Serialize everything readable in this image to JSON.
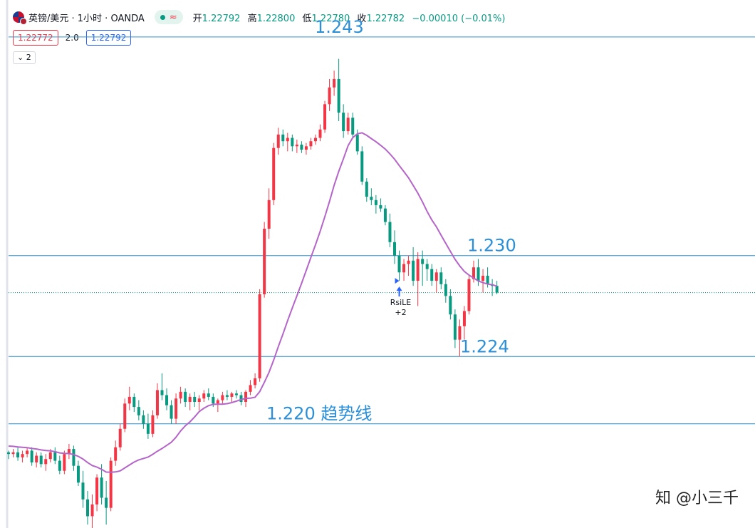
{
  "header": {
    "symbol": "英镑/美元 · 1小时 · OANDA",
    "market_status_icon": "market-open-dot",
    "wave_icon": "≈",
    "ohlc": {
      "open_label": "开",
      "open": "1.22792",
      "high_label": "高",
      "high": "1.22800",
      "low_label": "低",
      "low": "1.22780",
      "close_label": "收",
      "close": "1.22782",
      "change": "−0.00010 (−0.01%)"
    },
    "bid": "1.22772",
    "spread": "2.0",
    "ask": "1.22792",
    "indicators_toggle": "2",
    "indicators_icon": "chevron-down-icon"
  },
  "colors": {
    "up": "#f23645",
    "down": "#089981",
    "ma": "#b565c9",
    "level_line": "#2f8fc8",
    "level_text": "#2b90d9"
  },
  "chart_data": {
    "type": "candlestick",
    "ylim": [
      1.2138,
      1.2452
    ],
    "levels": [
      {
        "value": 1.243,
        "label": "1.243"
      },
      {
        "value": 1.23,
        "label": "1.230"
      },
      {
        "value": 1.224,
        "label": "1.224"
      },
      {
        "value": 1.22,
        "label": "1.220 趋势线"
      }
    ],
    "current_price": 1.2278,
    "signal": {
      "label": "RsiLE",
      "sub": "+2",
      "at_index": 84
    },
    "candles": [
      [
        1.2183,
        1.2184,
        1.2179,
        1.2182
      ],
      [
        1.2182,
        1.2185,
        1.218,
        1.2183
      ],
      [
        1.2183,
        1.2186,
        1.2178,
        1.218
      ],
      [
        1.218,
        1.2184,
        1.2177,
        1.2182
      ],
      [
        1.2182,
        1.2186,
        1.218,
        1.2184
      ],
      [
        1.2184,
        1.2186,
        1.2175,
        1.2177
      ],
      [
        1.2177,
        1.2183,
        1.2174,
        1.2181
      ],
      [
        1.2181,
        1.2183,
        1.2174,
        1.2176
      ],
      [
        1.2176,
        1.2182,
        1.2172,
        1.2179
      ],
      [
        1.2179,
        1.2185,
        1.2177,
        1.2183
      ],
      [
        1.2183,
        1.2186,
        1.2176,
        1.2178
      ],
      [
        1.2178,
        1.2181,
        1.217,
        1.2172
      ],
      [
        1.2172,
        1.2184,
        1.217,
        1.2182
      ],
      [
        1.2182,
        1.2188,
        1.2179,
        1.2185
      ],
      [
        1.2185,
        1.2187,
        1.2172,
        1.2175
      ],
      [
        1.2175,
        1.2178,
        1.2163,
        1.2165
      ],
      [
        1.2165,
        1.2172,
        1.215,
        1.2155
      ],
      [
        1.2155,
        1.216,
        1.214,
        1.2145
      ],
      [
        1.2145,
        1.2158,
        1.2138,
        1.2152
      ],
      [
        1.2152,
        1.217,
        1.2148,
        1.2168
      ],
      [
        1.2168,
        1.2176,
        1.2152,
        1.2156
      ],
      [
        1.2156,
        1.2166,
        1.214,
        1.215
      ],
      [
        1.215,
        1.218,
        1.2148,
        1.2178
      ],
      [
        1.2178,
        1.219,
        1.2175,
        1.2186
      ],
      [
        1.2186,
        1.22,
        1.2184,
        1.2197
      ],
      [
        1.2197,
        1.2215,
        1.2195,
        1.2212
      ],
      [
        1.2212,
        1.2222,
        1.2208,
        1.2216
      ],
      [
        1.2216,
        1.2218,
        1.2207,
        1.221
      ],
      [
        1.221,
        1.2214,
        1.2202,
        1.2205
      ],
      [
        1.2205,
        1.2208,
        1.2197,
        1.22
      ],
      [
        1.22,
        1.2206,
        1.2191,
        1.2194
      ],
      [
        1.2194,
        1.2208,
        1.2192,
        1.2205
      ],
      [
        1.2205,
        1.2224,
        1.2203,
        1.222
      ],
      [
        1.222,
        1.223,
        1.2214,
        1.2217
      ],
      [
        1.2217,
        1.2221,
        1.2208,
        1.2211
      ],
      [
        1.2211,
        1.2214,
        1.22,
        1.2203
      ],
      [
        1.2203,
        1.2218,
        1.22,
        1.2215
      ],
      [
        1.2215,
        1.2222,
        1.2212,
        1.2219
      ],
      [
        1.2219,
        1.2221,
        1.221,
        1.2213
      ],
      [
        1.2213,
        1.2218,
        1.2208,
        1.2216
      ],
      [
        1.2216,
        1.2219,
        1.221,
        1.2213
      ],
      [
        1.2213,
        1.2217,
        1.2208,
        1.2215
      ],
      [
        1.2215,
        1.222,
        1.2213,
        1.2218
      ],
      [
        1.2218,
        1.2221,
        1.2214,
        1.2216
      ],
      [
        1.2216,
        1.2218,
        1.221,
        1.2212
      ],
      [
        1.2212,
        1.2215,
        1.2207,
        1.2214
      ],
      [
        1.2214,
        1.2219,
        1.2212,
        1.2217
      ],
      [
        1.2217,
        1.222,
        1.2214,
        1.2216
      ],
      [
        1.2216,
        1.2219,
        1.2213,
        1.2218
      ],
      [
        1.2218,
        1.222,
        1.2215,
        1.2217
      ],
      [
        1.2217,
        1.2219,
        1.2211,
        1.2213
      ],
      [
        1.2213,
        1.222,
        1.221,
        1.2219
      ],
      [
        1.2219,
        1.2226,
        1.2217,
        1.2223
      ],
      [
        1.2223,
        1.223,
        1.2221,
        1.2227
      ],
      [
        1.2227,
        1.228,
        1.2225,
        1.2277
      ],
      [
        1.2277,
        1.232,
        1.2275,
        1.2316
      ],
      [
        1.2316,
        1.234,
        1.231,
        1.2333
      ],
      [
        1.2333,
        1.2367,
        1.233,
        1.2364
      ],
      [
        1.2364,
        1.2376,
        1.236,
        1.2372
      ],
      [
        1.2372,
        1.2375,
        1.2365,
        1.2368
      ],
      [
        1.2368,
        1.2373,
        1.2362,
        1.237
      ],
      [
        1.237,
        1.2372,
        1.2362,
        1.2365
      ],
      [
        1.2365,
        1.2369,
        1.2361,
        1.2366
      ],
      [
        1.2366,
        1.2368,
        1.2361,
        1.2363
      ],
      [
        1.2363,
        1.2367,
        1.236,
        1.2365
      ],
      [
        1.2365,
        1.237,
        1.2363,
        1.2368
      ],
      [
        1.2368,
        1.2372,
        1.2366,
        1.237
      ],
      [
        1.237,
        1.2378,
        1.2368,
        1.2375
      ],
      [
        1.2375,
        1.2392,
        1.2373,
        1.239
      ],
      [
        1.239,
        1.2405,
        1.2386,
        1.24
      ],
      [
        1.24,
        1.241,
        1.2395,
        1.2405
      ],
      [
        1.2405,
        1.2417,
        1.238,
        1.2385
      ],
      [
        1.2385,
        1.239,
        1.237,
        1.2374
      ],
      [
        1.2374,
        1.2385,
        1.2372,
        1.2382
      ],
      [
        1.2382,
        1.2385,
        1.237,
        1.2372
      ],
      [
        1.2372,
        1.2375,
        1.236,
        1.2362
      ],
      [
        1.2362,
        1.2365,
        1.2342,
        1.2344
      ],
      [
        1.2344,
        1.2346,
        1.2332,
        1.2335
      ],
      [
        1.2335,
        1.234,
        1.233,
        1.2333
      ],
      [
        1.2333,
        1.2336,
        1.2325,
        1.233
      ],
      [
        1.233,
        1.2334,
        1.2326,
        1.2328
      ],
      [
        1.2328,
        1.233,
        1.2318,
        1.232
      ],
      [
        1.232,
        1.2325,
        1.2305,
        1.2308
      ],
      [
        1.2308,
        1.2315,
        1.2295,
        1.23
      ],
      [
        1.23,
        1.2303,
        1.2285,
        1.229
      ],
      [
        1.229,
        1.2298,
        1.2285,
        1.2295
      ],
      [
        1.2295,
        1.23,
        1.2288,
        1.2297
      ],
      [
        1.2297,
        1.2305,
        1.2282,
        1.2285
      ],
      [
        1.2285,
        1.2302,
        1.227,
        1.2298
      ],
      [
        1.2298,
        1.2303,
        1.2282,
        1.2295
      ],
      [
        1.2295,
        1.2298,
        1.2285,
        1.2292
      ],
      [
        1.2292,
        1.2295,
        1.2282,
        1.2285
      ],
      [
        1.2285,
        1.2292,
        1.2278,
        1.229
      ],
      [
        1.229,
        1.2293,
        1.228,
        1.2283
      ],
      [
        1.2283,
        1.2286,
        1.2272,
        1.2276
      ],
      [
        1.2276,
        1.228,
        1.2262,
        1.2265
      ],
      [
        1.2265,
        1.2268,
        1.2245,
        1.225
      ],
      [
        1.225,
        1.2262,
        1.224,
        1.2258
      ],
      [
        1.2258,
        1.227,
        1.225,
        1.2267
      ],
      [
        1.2267,
        1.2288,
        1.2265,
        1.2286
      ],
      [
        1.2286,
        1.2297,
        1.2284,
        1.2293
      ],
      [
        1.2293,
        1.2298,
        1.2282,
        1.2285
      ],
      [
        1.2285,
        1.2292,
        1.2278,
        1.2288
      ],
      [
        1.2288,
        1.2293,
        1.2281,
        1.2283
      ],
      [
        1.2283,
        1.2286,
        1.2276,
        1.2282
      ],
      [
        1.2282,
        1.2285,
        1.2277,
        1.2278
      ]
    ]
  },
  "watermark": "知 @小三千"
}
